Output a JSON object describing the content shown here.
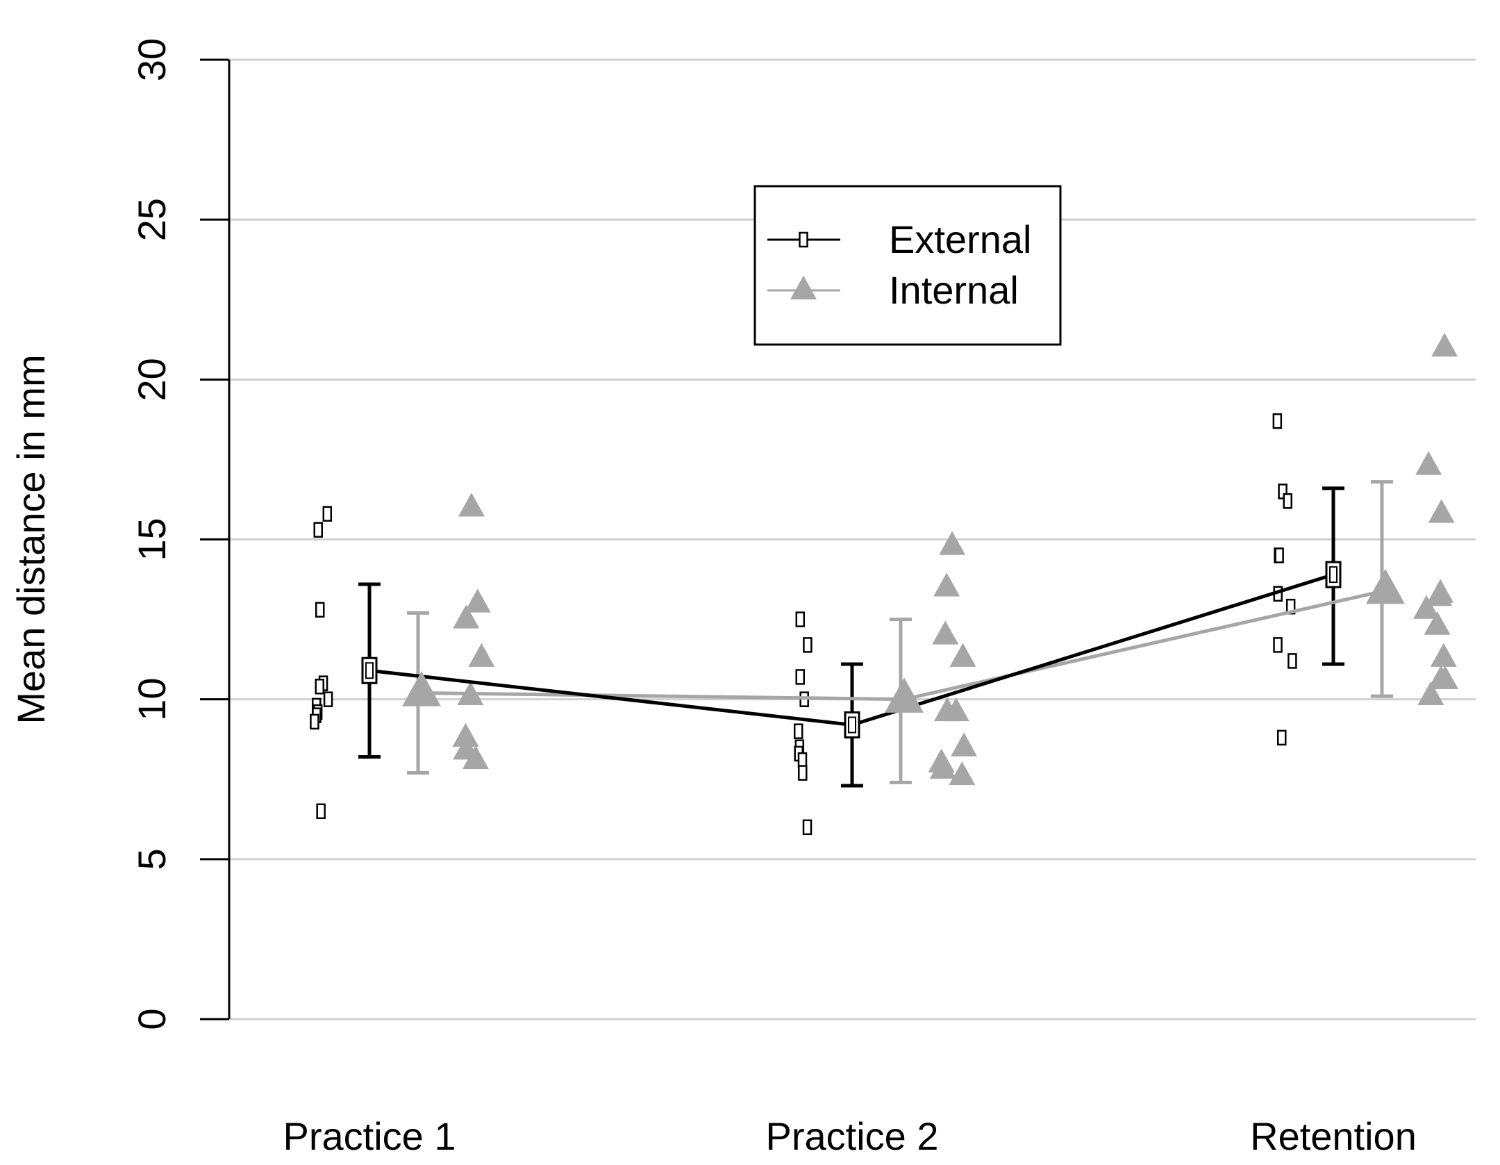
{
  "chart_data": {
    "type": "line",
    "title": "",
    "xlabel": "",
    "ylabel": "Mean distance in mm",
    "ylim": [
      0,
      30
    ],
    "yticks": [
      "0",
      "5",
      "10",
      "15",
      "20",
      "25",
      "30"
    ],
    "grid": true,
    "legend_position": "top-center",
    "categories": [
      "Practice 1",
      "Practice 2",
      "Retention"
    ],
    "colors": {
      "external": "#000000",
      "internal": "#a6a6a6",
      "grid": "#d0d0d0"
    },
    "series": [
      {
        "name": "External",
        "marker": "square",
        "means": [
          10.9,
          9.2,
          13.9
        ],
        "ci_low": [
          8.2,
          7.3,
          11.1
        ],
        "ci_high": [
          13.6,
          11.1,
          16.6
        ],
        "individual": [
          [
            15.8,
            15.3,
            12.8,
            10.5,
            10.4,
            10.0,
            9.8,
            9.6,
            9.5,
            9.3,
            6.5
          ],
          [
            12.5,
            11.7,
            10.7,
            10.0,
            9.0,
            8.5,
            8.3,
            8.1,
            7.7,
            6.0
          ],
          [
            18.7,
            16.5,
            16.2,
            14.5,
            14.5,
            13.3,
            12.9,
            11.7,
            11.2,
            8.8
          ]
        ]
      },
      {
        "name": "Internal",
        "marker": "triangle",
        "means": [
          10.2,
          10.0,
          13.4
        ],
        "ci_low": [
          7.7,
          7.4,
          10.1
        ],
        "ci_high": [
          12.7,
          12.5,
          16.8
        ],
        "individual": [
          [
            16.0,
            13.0,
            12.5,
            11.3,
            10.1,
            8.8,
            8.4,
            8.1
          ],
          [
            14.8,
            13.5,
            12.0,
            11.3,
            9.6,
            9.6,
            8.5,
            8.0,
            7.8,
            7.6
          ],
          [
            21.0,
            17.3,
            15.8,
            13.3,
            13.2,
            12.8,
            12.3,
            11.3,
            10.6,
            10.6,
            10.1
          ]
        ]
      }
    ]
  }
}
